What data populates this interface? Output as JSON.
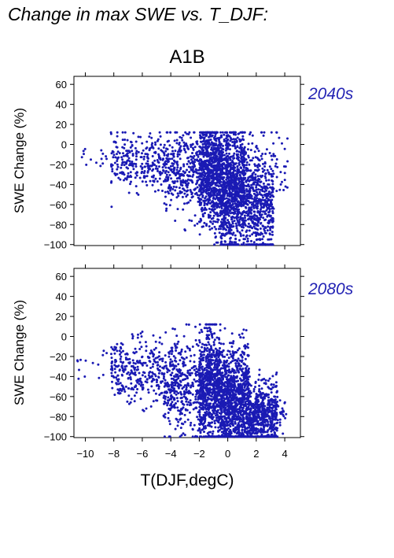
{
  "figure_title": "Change in max SWE vs. T_DJF:",
  "scenario": "A1B",
  "colors": {
    "points": "#1a1ab4",
    "axes": "#000000",
    "panel_label": "#2323b4",
    "background": "#ffffff"
  },
  "chart_data": [
    {
      "type": "scatter",
      "panel_label": "2040s",
      "xlabel": "",
      "ylabel": "SWE Change (%)",
      "xlim": [
        -10.8,
        5.1
      ],
      "ylim": [
        -101,
        68
      ],
      "x_ticks": [
        -10,
        -8,
        -6,
        -4,
        -2,
        0,
        2,
        4
      ],
      "y_ticks": [
        "60",
        "40",
        "20",
        "0",
        "−20",
        "−40",
        "−60",
        "−80",
        "−100"
      ],
      "y_tick_values": [
        60,
        40,
        20,
        0,
        -20,
        -40,
        -60,
        -80,
        -100
      ],
      "x_tick_labels_shown": false,
      "grid": false,
      "point_clusters": [
        {
          "x_range": [
            -10.6,
            -8.5
          ],
          "y_center": -12,
          "y_spread": 6,
          "count": 14
        },
        {
          "x_range": [
            -8.2,
            -4.5
          ],
          "y_center": -17,
          "y_spread": 13,
          "count": 260
        },
        {
          "x_range": [
            -4.5,
            -2.0
          ],
          "y_center": -28,
          "y_spread": 20,
          "count": 330
        },
        {
          "x_range": [
            -2.0,
            -0.5
          ],
          "y_center": -30,
          "y_spread": 26,
          "count": 760
        },
        {
          "x_range": [
            -0.5,
            1.2
          ],
          "y_center": -45,
          "y_spread": 30,
          "count": 980
        },
        {
          "x_range": [
            1.2,
            3.2
          ],
          "y_center": -58,
          "y_spread": 28,
          "count": 560
        },
        {
          "x_range": [
            3.2,
            4.2
          ],
          "y_center": -25,
          "y_spread": 18,
          "count": 30
        }
      ],
      "approx_point_count": 2900
    },
    {
      "type": "scatter",
      "panel_label": "2080s",
      "xlabel": "T(DJF,degC)",
      "ylabel": "SWE Change (%)",
      "xlim": [
        -10.8,
        5.1
      ],
      "ylim": [
        -101,
        68
      ],
      "x_ticks": [
        -10,
        -8,
        -6,
        -4,
        -2,
        0,
        2,
        4
      ],
      "x_tick_labels": [
        "−10",
        "−8",
        "−6",
        "−4",
        "−2",
        "0",
        "2",
        "4"
      ],
      "y_ticks": [
        "60",
        "40",
        "20",
        "0",
        "−20",
        "−40",
        "−60",
        "−80",
        "−100"
      ],
      "y_tick_values": [
        60,
        40,
        20,
        0,
        -20,
        -40,
        -60,
        -80,
        -100
      ],
      "grid": false,
      "point_clusters": [
        {
          "x_range": [
            -10.6,
            -8.5
          ],
          "y_center": -25,
          "y_spread": 10,
          "count": 14
        },
        {
          "x_range": [
            -8.2,
            -4.5
          ],
          "y_center": -35,
          "y_spread": 16,
          "count": 300
        },
        {
          "x_range": [
            -4.5,
            -2.0
          ],
          "y_center": -50,
          "y_spread": 24,
          "count": 380
        },
        {
          "x_range": [
            -2.0,
            -0.5
          ],
          "y_center": -50,
          "y_spread": 28,
          "count": 800
        },
        {
          "x_range": [
            -0.5,
            1.5
          ],
          "y_center": -65,
          "y_spread": 26,
          "count": 1050
        },
        {
          "x_range": [
            1.5,
            3.5
          ],
          "y_center": -78,
          "y_spread": 16,
          "count": 560
        },
        {
          "x_range": [
            3.5,
            4.1
          ],
          "y_center": -80,
          "y_spread": 10,
          "count": 20
        }
      ],
      "approx_point_count": 3100
    }
  ]
}
